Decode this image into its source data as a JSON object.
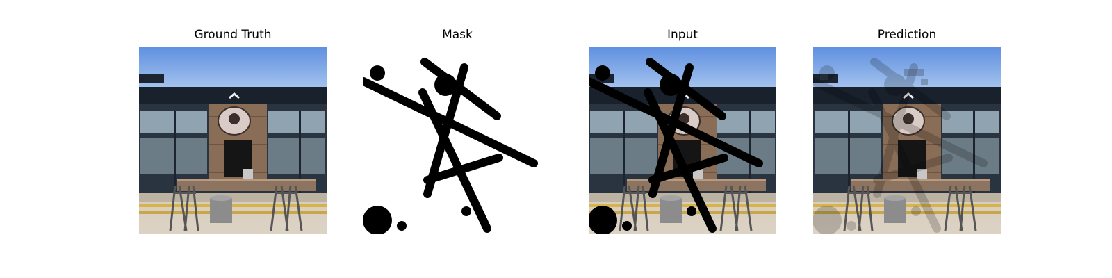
{
  "figure": {
    "panels": [
      {
        "title": "Ground Truth",
        "kind": "photo"
      },
      {
        "title": "Mask",
        "kind": "mask"
      },
      {
        "title": "Input",
        "kind": "masked-photo"
      },
      {
        "title": "Prediction",
        "kind": "inpainted-photo"
      }
    ]
  },
  "colors": {
    "sky": "#6f9be0",
    "mask_stroke": "#000000",
    "awning": "#1a2330",
    "wall_wood": "#8a6d57",
    "ground": "#cfc4b4"
  }
}
